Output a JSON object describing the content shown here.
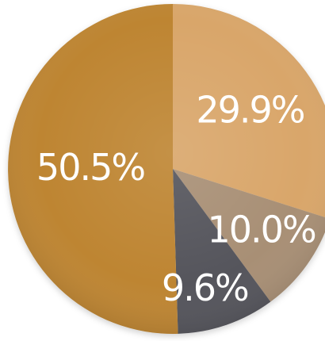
{
  "chart_data": {
    "type": "pie",
    "slices": [
      {
        "label": "29.9%",
        "value": 29.9,
        "color": "#d9a66b"
      },
      {
        "label": "10.0%",
        "value": 10.0,
        "color": "#a88f75"
      },
      {
        "label": "9.6%",
        "value": 9.6,
        "color": "#55545b"
      },
      {
        "label": "50.5%",
        "value": 50.5,
        "color": "#be8533"
      }
    ],
    "start_angle": "12 o'clock",
    "direction": "clockwise",
    "labels_inside": true,
    "legend": "none",
    "title": "",
    "colors": {
      "label_text": "#ffffff",
      "background": "#ffffff"
    }
  }
}
